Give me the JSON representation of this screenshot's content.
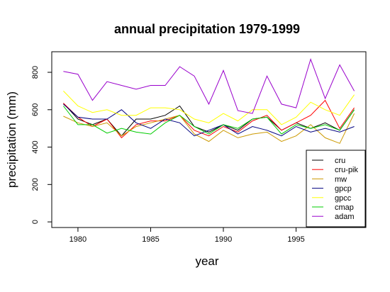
{
  "chart_data": {
    "type": "line",
    "title": "annual precipitation 1979-1999",
    "xlabel": "year",
    "ylabel": "precipitation (mm)",
    "xlim": [
      1978.2,
      1999.8
    ],
    "ylim": [
      -30,
      910
    ],
    "x_ticks": [
      1980,
      1985,
      1990,
      1995
    ],
    "y_ticks": [
      0,
      200,
      400,
      600,
      800
    ],
    "grid": false,
    "legend_position": "bottom-right",
    "x": [
      1979,
      1980,
      1981,
      1982,
      1983,
      1984,
      1985,
      1986,
      1987,
      1988,
      1989,
      1990,
      1991,
      1992,
      1993,
      1994,
      1995,
      1996,
      1997,
      1998,
      1999
    ],
    "series": [
      {
        "name": "cru",
        "color": "#000000",
        "values": [
          635,
          550,
          520,
          550,
          460,
          550,
          550,
          570,
          620,
          510,
          480,
          520,
          490,
          550,
          560,
          490,
          530,
          500,
          530,
          490,
          600
        ]
      },
      {
        "name": "cru-pik",
        "color": "#ff0000",
        "values": [
          635,
          560,
          510,
          550,
          450,
          520,
          540,
          540,
          570,
          490,
          460,
          510,
          480,
          540,
          570,
          490,
          530,
          570,
          650,
          500,
          610
        ]
      },
      {
        "name": "mw",
        "color": "#cc9900",
        "values": [
          565,
          530,
          510,
          530,
          460,
          510,
          530,
          550,
          570,
          470,
          430,
          490,
          450,
          470,
          480,
          430,
          460,
          520,
          450,
          420,
          580
        ]
      },
      {
        "name": "gpcp",
        "color": "#000080",
        "values": [
          630,
          560,
          550,
          550,
          600,
          530,
          500,
          550,
          530,
          460,
          490,
          520,
          470,
          510,
          490,
          460,
          510,
          480,
          500,
          480,
          510
        ]
      },
      {
        "name": "gpcc",
        "color": "#ffff00",
        "values": [
          700,
          620,
          585,
          600,
          570,
          570,
          610,
          610,
          600,
          550,
          530,
          580,
          540,
          600,
          600,
          520,
          560,
          640,
          600,
          570,
          680
        ]
      },
      {
        "name": "cmap",
        "color": "#00cc00",
        "values": [
          620,
          520,
          520,
          475,
          500,
          480,
          470,
          530,
          570,
          510,
          470,
          520,
          500,
          550,
          560,
          470,
          520,
          500,
          520,
          490,
          600
        ]
      },
      {
        "name": "adam",
        "color": "#9900cc",
        "values": [
          805,
          790,
          650,
          750,
          730,
          710,
          730,
          730,
          830,
          780,
          630,
          810,
          595,
          580,
          780,
          630,
          610,
          870,
          660,
          840,
          700
        ]
      }
    ]
  }
}
